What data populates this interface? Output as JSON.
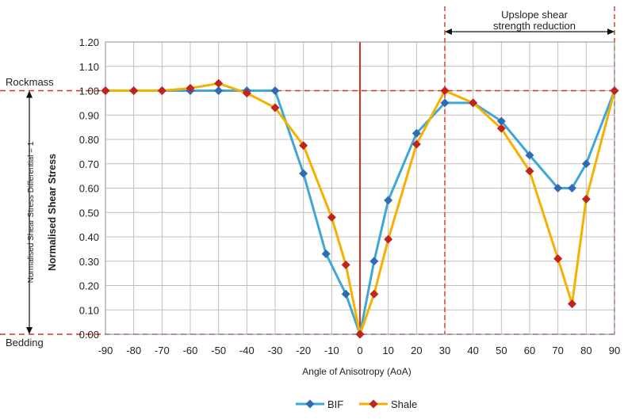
{
  "chart_data": {
    "type": "line",
    "title": "",
    "xlabel": "Angle of Anisotropy (AoA)",
    "ylabel": "Normalised Shear Stress",
    "xlim": [
      -90,
      90
    ],
    "ylim": [
      0,
      1.2
    ],
    "x_ticks": [
      -90,
      -80,
      -70,
      -60,
      -50,
      -40,
      -30,
      -20,
      -10,
      0,
      10,
      20,
      30,
      40,
      50,
      60,
      70,
      80,
      90
    ],
    "y_ticks": [
      "0.00",
      "0.10",
      "0.20",
      "0.30",
      "0.40",
      "0.50",
      "0.60",
      "0.70",
      "0.80",
      "0.90",
      "1.00",
      "1.10",
      "1.20"
    ],
    "grid": true,
    "legend_position": "bottom",
    "series": [
      {
        "name": "BIF",
        "color": "#3fa7d6",
        "marker_color": "#2f6db3",
        "marker": "diamond",
        "x": [
          -90,
          -80,
          -70,
          -60,
          -50,
          -40,
          -30,
          -20,
          -12,
          -5,
          0,
          5,
          10,
          20,
          30,
          40,
          50,
          60,
          70,
          75,
          80,
          90
        ],
        "y": [
          1.0,
          1.0,
          1.0,
          1.0,
          1.0,
          1.0,
          1.0,
          0.66,
          0.33,
          0.165,
          0.0,
          0.3,
          0.55,
          0.825,
          0.95,
          0.95,
          0.875,
          0.735,
          0.6,
          0.6,
          0.7,
          1.0
        ]
      },
      {
        "name": "Shale",
        "color": "#f5b000",
        "marker_color": "#c0241c",
        "marker": "diamond",
        "x": [
          -90,
          -80,
          -70,
          -60,
          -50,
          -40,
          -30,
          -20,
          -10,
          -5,
          0,
          5,
          10,
          20,
          30,
          40,
          50,
          60,
          70,
          75,
          80,
          90
        ],
        "y": [
          1.0,
          1.0,
          1.0,
          1.01,
          1.03,
          0.99,
          0.93,
          0.775,
          0.48,
          0.285,
          0.0,
          0.165,
          0.39,
          0.78,
          1.0,
          0.95,
          0.845,
          0.67,
          0.31,
          0.125,
          0.555,
          1.0
        ]
      }
    ],
    "annotations": {
      "rockmass_label": "Rockmass",
      "bedding_label": "Bedding",
      "differential_label": "Normalised Shear Stress Differential = 1",
      "upslope_line1": "Upslope shear",
      "upslope_line2": "strength reduction"
    }
  }
}
